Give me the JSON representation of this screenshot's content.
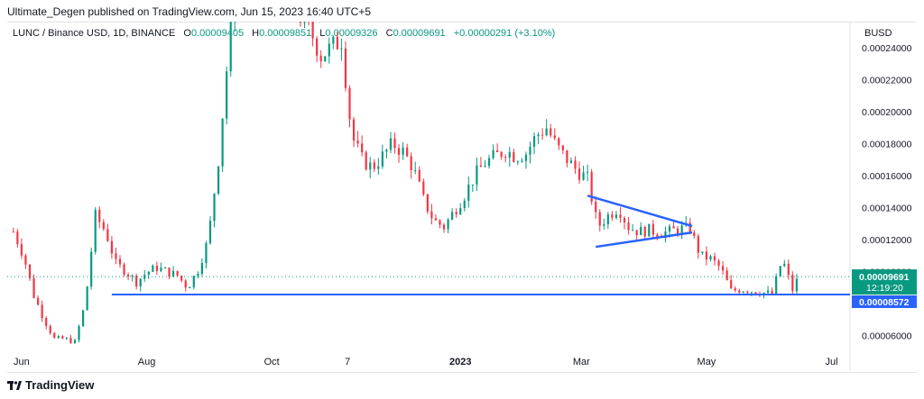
{
  "header": {
    "publisher_line": "Ultimate_Degen published on TradingView.com, Jun 15, 2023 16:40 UTC+5"
  },
  "legend": {
    "symbol": "LUNC / Binance USD, 1D, BINANCE",
    "open_label": "O",
    "open": "0.00009405",
    "high_label": "H",
    "high": "0.00009851",
    "low_label": "L",
    "low": "0.00009326",
    "close_label": "C",
    "close": "0.00009691",
    "change": "+0.00000291 (+3.10%)"
  },
  "currency": "BUSD",
  "colors": {
    "up": "#089981",
    "down": "#f23645",
    "drawing": "#2962ff",
    "current": "#089981"
  },
  "footer": {
    "brand": "TradingView",
    "logo_icon": "tradingview-logo-icon"
  },
  "chart_data": {
    "type": "candlestick",
    "y_tick_labels": [
      "0.00006000",
      "0.00008000",
      "0.00010000",
      "0.00012000",
      "0.00014000",
      "0.00016000",
      "0.00018000",
      "0.00020000",
      "0.00022000",
      "0.00024000"
    ],
    "y_ticks": [
      6e-05,
      8e-05,
      0.0001,
      0.00012,
      0.00014,
      0.00016,
      0.00018,
      0.0002,
      0.00022,
      0.00024
    ],
    "x_tick_labels": [
      "Jun",
      "Aug",
      "Oct",
      "7",
      "2023",
      "Mar",
      "May",
      "Jul"
    ],
    "x_tick_dates": [
      "2022-06-01",
      "2022-08-01",
      "2022-10-01",
      "2022-11-07",
      "2023-01-01",
      "2023-03-01",
      "2023-05-01",
      "2023-07-01"
    ],
    "current_price": {
      "value": 9.691e-05,
      "label": "0.00009691",
      "countdown": "12:19:20"
    },
    "support_line": {
      "value": 8.572e-05,
      "label": "0.00008572",
      "from_date": "2022-07-15",
      "to_date": "2023-07-01"
    },
    "triangle_lines": [
      {
        "from": {
          "date": "2023-03-04",
          "price": 0.0001475
        },
        "to": {
          "date": "2023-04-24",
          "price": 0.0001285
        }
      },
      {
        "from": {
          "date": "2023-03-08",
          "price": 0.0001155
        },
        "to": {
          "date": "2023-04-24",
          "price": 0.0001245
        }
      }
    ],
    "closes": [
      [
        "2022-05-28",
        0.000125
      ],
      [
        "2022-06-02",
        0.00011
      ],
      [
        "2022-06-07",
        8.5e-05
      ],
      [
        "2022-06-12",
        7e-05
      ],
      [
        "2022-06-17",
        5.8e-05
      ],
      [
        "2022-06-22",
        5.8e-05
      ],
      [
        "2022-06-27",
        5.6e-05
      ],
      [
        "2022-07-02",
        8e-05
      ],
      [
        "2022-07-07",
        0.000135
      ],
      [
        "2022-07-12",
        0.000125
      ],
      [
        "2022-07-17",
        0.000105
      ],
      [
        "2022-07-22",
        0.0001
      ],
      [
        "2022-07-27",
        9.35e-05
      ],
      [
        "2022-08-01",
        9.95e-05
      ],
      [
        "2022-08-06",
        0.0001025
      ],
      [
        "2022-08-11",
        0.0001
      ],
      [
        "2022-08-16",
        9.75e-05
      ],
      [
        "2022-08-21",
        9e-05
      ],
      [
        "2022-08-26",
        0.000101
      ],
      [
        "2022-08-31",
        0.00012
      ],
      [
        "2022-09-05",
        0.00017
      ],
      [
        "2022-09-10",
        0.00024
      ],
      [
        "2022-09-15",
        0.00029
      ],
      [
        "2022-09-20",
        0.00034
      ],
      [
        "2022-09-25",
        0.00031
      ],
      [
        "2022-09-30",
        0.00027
      ],
      [
        "2022-10-05",
        0.00028
      ],
      [
        "2022-10-10",
        0.00027
      ],
      [
        "2022-10-15",
        0.00026
      ],
      [
        "2022-10-20",
        0.00025
      ],
      [
        "2022-10-25",
        0.000235
      ],
      [
        "2022-10-30",
        0.00024
      ],
      [
        "2022-11-04",
        0.000245
      ],
      [
        "2022-11-09",
        0.000185
      ],
      [
        "2022-11-14",
        0.00017
      ],
      [
        "2022-11-19",
        0.000165
      ],
      [
        "2022-11-24",
        0.000172
      ],
      [
        "2022-11-29",
        0.00018
      ],
      [
        "2022-12-04",
        0.000175
      ],
      [
        "2022-12-09",
        0.000165
      ],
      [
        "2022-12-14",
        0.000145
      ],
      [
        "2022-12-19",
        0.000132
      ],
      [
        "2022-12-24",
        0.000128
      ],
      [
        "2022-12-29",
        0.000138
      ],
      [
        "2023-01-03",
        0.000148
      ],
      [
        "2023-01-08",
        0.00016
      ],
      [
        "2023-01-13",
        0.000168
      ],
      [
        "2023-01-18",
        0.000172
      ],
      [
        "2023-01-23",
        0.000176
      ],
      [
        "2023-01-28",
        0.000172
      ],
      [
        "2023-02-02",
        0.000174
      ],
      [
        "2023-02-07",
        0.000185
      ],
      [
        "2023-02-12",
        0.00019
      ],
      [
        "2023-02-17",
        0.000178
      ],
      [
        "2023-02-22",
        0.00017
      ],
      [
        "2023-02-27",
        0.000163
      ],
      [
        "2023-03-04",
        0.000158
      ],
      [
        "2023-03-09",
        0.000128
      ],
      [
        "2023-03-14",
        0.000135
      ],
      [
        "2023-03-19",
        0.00014
      ],
      [
        "2023-03-24",
        0.000128
      ],
      [
        "2023-03-29",
        0.000125
      ],
      [
        "2023-04-03",
        0.000126
      ],
      [
        "2023-04-08",
        0.000124
      ],
      [
        "2023-04-13",
        0.000125
      ],
      [
        "2023-04-18",
        0.000127
      ],
      [
        "2023-04-23",
        0.000127
      ],
      [
        "2023-04-28",
        0.00011
      ],
      [
        "2023-05-03",
        0.000108
      ],
      [
        "2023-05-08",
        0.000102
      ],
      [
        "2023-05-13",
        8.8e-05
      ],
      [
        "2023-05-18",
        8.9e-05
      ],
      [
        "2023-05-23",
        8.8e-05
      ],
      [
        "2023-05-28",
        8.7e-05
      ],
      [
        "2023-06-02",
        8.6e-05
      ],
      [
        "2023-06-07",
        0.000108
      ],
      [
        "2023-06-12",
        8.85e-05
      ],
      [
        "2023-06-15",
        9.691e-05
      ]
    ]
  }
}
